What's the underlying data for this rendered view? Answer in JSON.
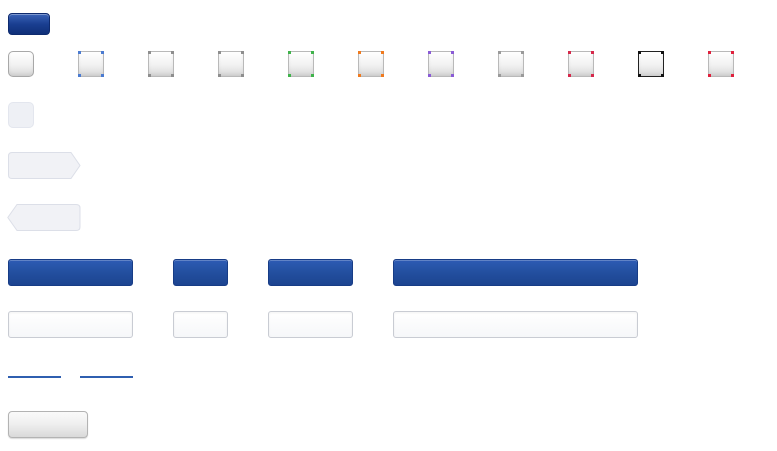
{
  "top_button": {
    "label": "",
    "color": "#1a3f91"
  },
  "swatches": [
    {
      "name": "swatch-plain",
      "corner_color": "#a8a8a8"
    },
    {
      "name": "swatch-blue",
      "corner_color": "#4b7bd1"
    },
    {
      "name": "swatch-grey",
      "corner_color": "#8e8e8e"
    },
    {
      "name": "swatch-grey-2",
      "corner_color": "#8e8e8e"
    },
    {
      "name": "swatch-green",
      "corner_color": "#3fb34a"
    },
    {
      "name": "swatch-orange",
      "corner_color": "#f07a1e"
    },
    {
      "name": "swatch-purple",
      "corner_color": "#8a5bd6"
    },
    {
      "name": "swatch-grey-3",
      "corner_color": "#9a9a9a"
    },
    {
      "name": "swatch-red",
      "corner_color": "#d6284a"
    },
    {
      "name": "swatch-black",
      "corner_color": "#111111"
    },
    {
      "name": "swatch-crimson",
      "corner_color": "#e0203c"
    }
  ],
  "chip": {
    "color": "#eef0f5"
  },
  "next_tag": {
    "label": ""
  },
  "prev_tag": {
    "label": ""
  },
  "bars": [
    {
      "label": ""
    },
    {
      "label": ""
    },
    {
      "label": ""
    },
    {
      "label": ""
    }
  ],
  "fields": [
    {
      "value": "",
      "placeholder": ""
    },
    {
      "value": "",
      "placeholder": ""
    },
    {
      "value": "",
      "placeholder": ""
    },
    {
      "value": "",
      "placeholder": ""
    }
  ],
  "links": [
    {
      "text": ""
    },
    {
      "text": ""
    }
  ],
  "grey_button": {
    "label": ""
  },
  "colors": {
    "accent_blue": "#234f9f",
    "tag_fill": "#f1f2f6",
    "tag_border": "#dcdfe8",
    "link_blue": "#2f5fb0"
  }
}
